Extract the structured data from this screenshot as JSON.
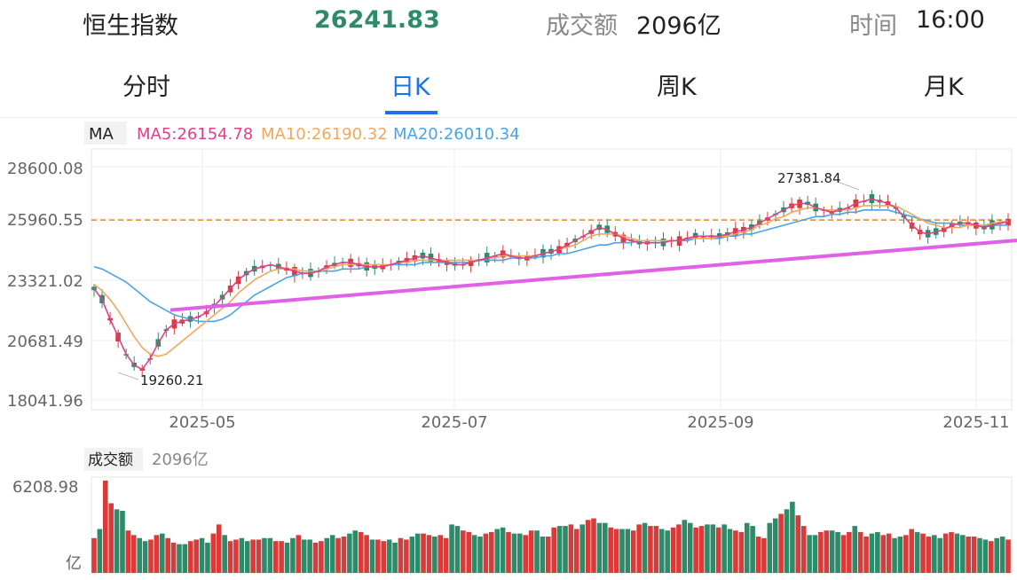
{
  "header": {
    "index_name": "恒生指数",
    "index_value": "26241.83",
    "turnover_label": "成交额",
    "turnover_value": "2096亿",
    "time_label": "时间",
    "time_value": "16:00"
  },
  "tabs": [
    {
      "label": "分时",
      "active": false
    },
    {
      "label": "日K",
      "active": true
    },
    {
      "label": "周K",
      "active": false
    },
    {
      "label": "月K",
      "active": false
    }
  ],
  "legend": {
    "ma_label": "MA",
    "ma5": "MA5:26154.78",
    "ma10": "MA10:26190.32",
    "ma20": "MA20:26010.34"
  },
  "volume_legend": {
    "label": "成交额",
    "value": "2096亿"
  },
  "colors": {
    "up": "#d93a3a",
    "down": "#2e8b6a",
    "ma5": "#e0408a",
    "ma10": "#f0a860",
    "ma20": "#4aa3e8",
    "trendline": "#e060e8",
    "refline": "#e08a30",
    "active_tab": "#1a73e8",
    "value_green": "#2e8b6a"
  },
  "chart_data": {
    "type": "candlestick",
    "y_ticks": [
      "28600.08",
      "25960.55",
      "23321.02",
      "20681.49",
      "18041.96"
    ],
    "y_range": [
      18041.96,
      28600.08
    ],
    "x_ticks": [
      "2025-05",
      "2025-07",
      "2025-09",
      "2025-11"
    ],
    "high_annotation": "27381.84",
    "low_annotation": "19260.21",
    "last_close": 26241.83,
    "volume": {
      "y_tick": "6208.98",
      "unit": "亿",
      "max": 6208.98
    },
    "trendline": {
      "start": [
        2025.27,
        22120
      ],
      "end": [
        2025.92,
        25310
      ]
    },
    "ma5": [
      23100,
      22600,
      21700,
      20900,
      20100,
      19600,
      19400,
      19900,
      20600,
      21200,
      21500,
      21600,
      21700,
      21800,
      22000,
      22300,
      22700,
      23100,
      23500,
      23800,
      24000,
      24100,
      24200,
      24100,
      24000,
      23900,
      23800,
      23800,
      23900,
      24100,
      24200,
      24300,
      24300,
      24200,
      24100,
      24100,
      24100,
      24200,
      24300,
      24400,
      24500,
      24600,
      24500,
      24400,
      24300,
      24200,
      24200,
      24300,
      24400,
      24500,
      24600,
      24700,
      24600,
      24500,
      24500,
      24600,
      24700,
      24800,
      24900,
      25100,
      25300,
      25500,
      25700,
      25900,
      25800,
      25600,
      25400,
      25300,
      25200,
      25200,
      25200,
      25200,
      25300,
      25300,
      25400,
      25500,
      25500,
      25500,
      25500,
      25600,
      25700,
      25800,
      25900,
      26100,
      26300,
      26500,
      26700,
      26900,
      27000,
      27000,
      26800,
      26700,
      26600,
      26700,
      26800,
      27000,
      27100,
      27200,
      27100,
      27000,
      26800,
      26400,
      26000,
      25700,
      25600,
      25700,
      25800,
      26000,
      26100,
      26100,
      26000,
      25900,
      26000,
      26100,
      26154
    ],
    "ma10": [
      23300,
      23000,
      22600,
      22100,
      21500,
      20900,
      20400,
      20100,
      20000,
      20100,
      20400,
      20700,
      21000,
      21300,
      21600,
      21900,
      22200,
      22500,
      22900,
      23200,
      23500,
      23700,
      23900,
      24000,
      24000,
      24000,
      23900,
      23900,
      23900,
      24000,
      24100,
      24200,
      24200,
      24200,
      24200,
      24200,
      24200,
      24200,
      24300,
      24300,
      24400,
      24400,
      24400,
      24400,
      24400,
      24400,
      24400,
      24400,
      24400,
      24500,
      24500,
      24600,
      24600,
      24600,
      24600,
      24600,
      24700,
      24800,
      24900,
      25000,
      25100,
      25300,
      25500,
      25600,
      25600,
      25600,
      25500,
      25400,
      25300,
      25300,
      25300,
      25300,
      25300,
      25300,
      25400,
      25400,
      25400,
      25400,
      25500,
      25500,
      25600,
      25700,
      25800,
      26000,
      26100,
      26300,
      26400,
      26600,
      26700,
      26800,
      26800,
      26700,
      26700,
      26700,
      26700,
      26800,
      26900,
      26900,
      26900,
      26900,
      26900,
      26700,
      26500,
      26300,
      26100,
      26000,
      25900,
      25900,
      25900,
      26000,
      26000,
      26000,
      26100,
      26150,
      26190
    ],
    "ma20": [
      24100,
      24000,
      23800,
      23600,
      23400,
      23100,
      22800,
      22500,
      22300,
      22100,
      21900,
      21800,
      21700,
      21600,
      21600,
      21600,
      21700,
      21900,
      22200,
      22500,
      22800,
      23000,
      23200,
      23400,
      23600,
      23700,
      23800,
      23800,
      23900,
      23900,
      23900,
      24000,
      24000,
      24000,
      24100,
      24100,
      24100,
      24200,
      24200,
      24200,
      24200,
      24300,
      24300,
      24300,
      24300,
      24300,
      24300,
      24300,
      24400,
      24400,
      24400,
      24400,
      24500,
      24500,
      24500,
      24500,
      24600,
      24600,
      24700,
      24700,
      24800,
      24900,
      25000,
      25100,
      25100,
      25200,
      25200,
      25200,
      25300,
      25300,
      25300,
      25300,
      25300,
      25300,
      25300,
      25400,
      25400,
      25400,
      25400,
      25500,
      25500,
      25600,
      25600,
      25700,
      25800,
      25900,
      26000,
      26100,
      26200,
      26300,
      26400,
      26400,
      26500,
      26500,
      26600,
      26600,
      26700,
      26700,
      26700,
      26700,
      26600,
      26500,
      26400,
      26300,
      26200,
      26100,
      26100,
      26100,
      26000,
      26000,
      26000,
      26000,
      26000,
      26000,
      26010
    ],
    "volumes": [
      2300,
      2900,
      6100,
      4600,
      4200,
      4100,
      2800,
      2500,
      2300,
      2100,
      2200,
      2500,
      2600,
      2300,
      2000,
      1900,
      1900,
      2100,
      2200,
      2300,
      2000,
      2600,
      3200,
      2500,
      2100,
      2200,
      2300,
      2100,
      2200,
      2200,
      2300,
      2300,
      2100,
      2100,
      2000,
      2300,
      2500,
      2200,
      2200,
      2000,
      2100,
      2300,
      2500,
      2300,
      2400,
      2600,
      2800,
      2700,
      2500,
      2200,
      2200,
      2100,
      2200,
      2000,
      2300,
      2200,
      2400,
      2600,
      2600,
      2500,
      2400,
      2500,
      2300,
      3200,
      3100,
      2800,
      2700,
      2500,
      2400,
      2600,
      2700,
      2900,
      3000,
      2700,
      2600,
      2600,
      2500,
      2800,
      2800,
      2400,
      2400,
      3000,
      3100,
      3100,
      3200,
      2900,
      3200,
      3500,
      3600,
      3300,
      3300,
      3000,
      2900,
      2900,
      2900,
      2800,
      3200,
      3300,
      3100,
      3100,
      2900,
      2800,
      3000,
      3200,
      3500,
      3300,
      3000,
      3100,
      3200,
      3200,
      3000,
      3200,
      2900,
      2800,
      2700,
      3300,
      3100,
      2400,
      2300,
      3300,
      3600,
      3900,
      4200,
      4700,
      3800,
      3100,
      2500,
      2500,
      2700,
      2800,
      2800,
      2700,
      2500,
      2700,
      3100,
      2700,
      2400,
      2600,
      2700,
      2500,
      2600,
      2300,
      2400,
      2500,
      2900,
      2700,
      2600,
      2400,
      2500,
      2300,
      2600,
      2700,
      2600,
      2500,
      2400,
      2400,
      2300,
      2200,
      2100,
      2300,
      2400,
      2200
    ]
  }
}
